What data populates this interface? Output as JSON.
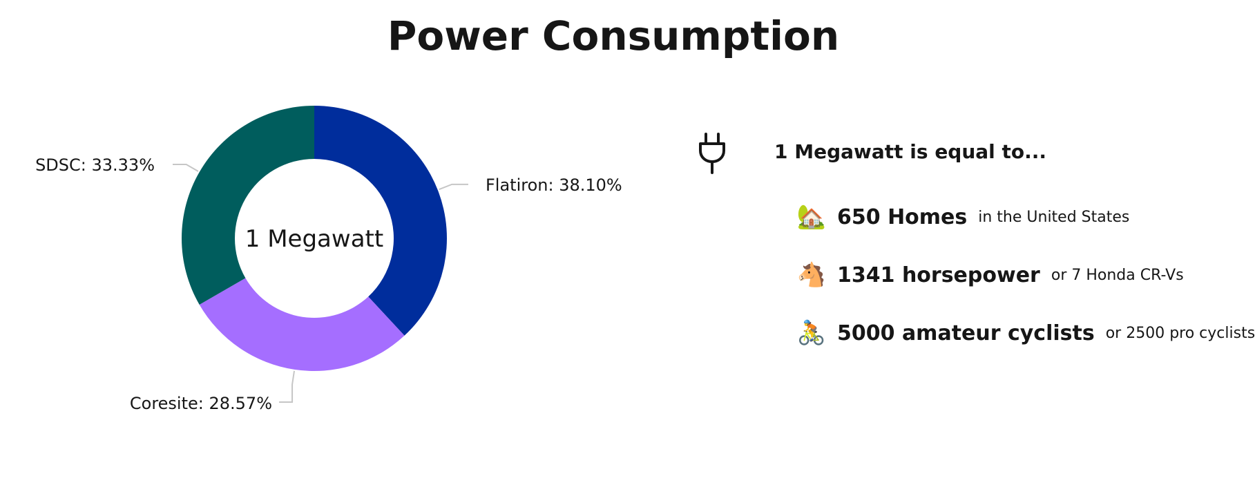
{
  "title": "Power Consumption",
  "chart_data": {
    "type": "pie",
    "donut": true,
    "center_label": "1 Megawatt",
    "categories": [
      "Flatiron",
      "Coresite",
      "SDSC"
    ],
    "values": [
      38.1,
      28.57,
      33.33
    ],
    "labels": [
      "Flatiron: 38.10%",
      "Coresite: 28.57%",
      "SDSC: 33.33%"
    ],
    "colors": [
      "#002d9c",
      "#a56eff",
      "#005d5d"
    ],
    "legend": "none"
  },
  "equivalence": {
    "icon": "plug-icon",
    "heading": "1 Megawatt is equal to...",
    "items": [
      {
        "icon": "house-icon",
        "emoji": "🏡",
        "main": "650 Homes",
        "sub": "in the United States"
      },
      {
        "icon": "horse-icon",
        "emoji": "🐴",
        "main": "1341 horsepower",
        "sub": "or 7 Honda CR-Vs"
      },
      {
        "icon": "cyclist-icon",
        "emoji": "🚴",
        "main": "5000 amateur cyclists",
        "sub": "or 2500 pro cyclists"
      }
    ]
  }
}
